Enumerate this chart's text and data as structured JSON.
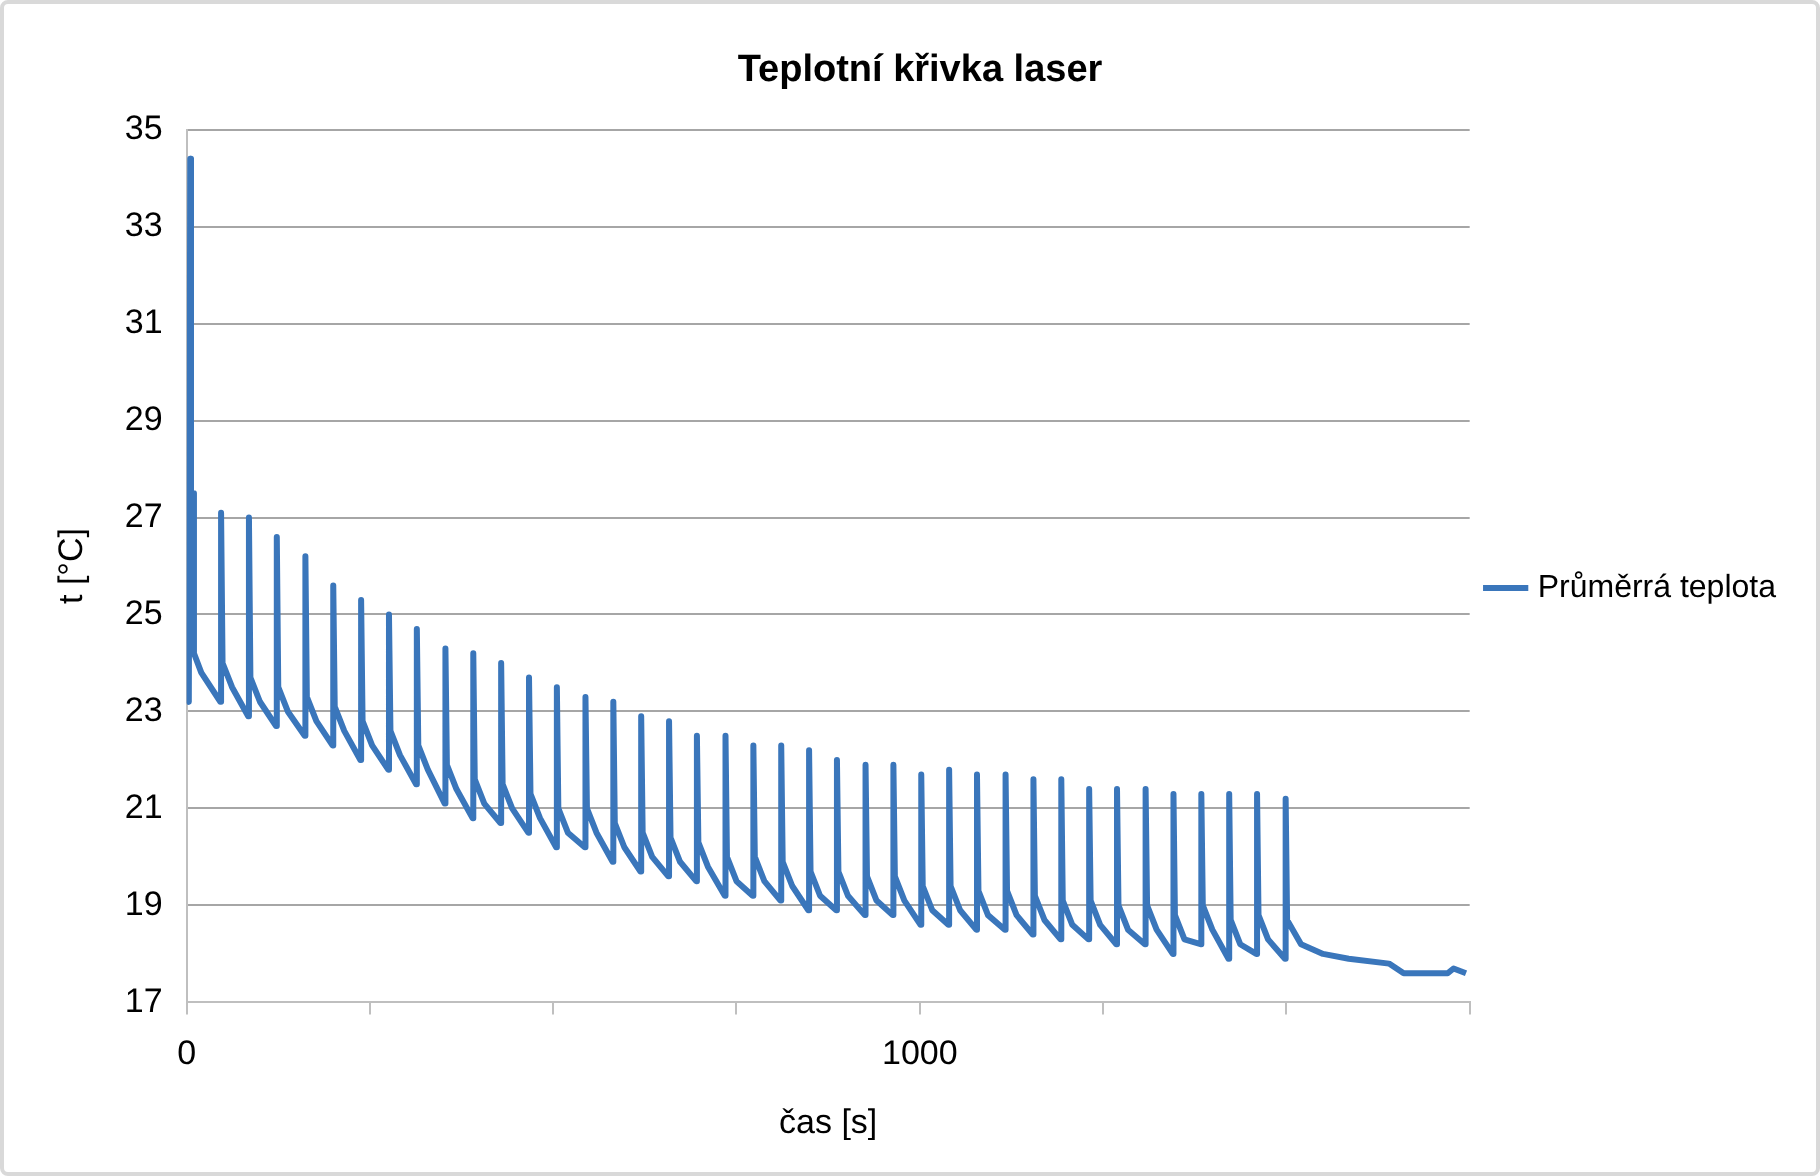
{
  "chart_data": {
    "type": "line",
    "title": "Teplotní křivka laser",
    "xlabel": "čas [s]",
    "ylabel": "t [°C]",
    "x": [
      0,
      3,
      5,
      6,
      8,
      10,
      20,
      46,
      47,
      49,
      62,
      84,
      85,
      87,
      100,
      122,
      123,
      125,
      138,
      161,
      162,
      164,
      177,
      199,
      200,
      202,
      215,
      237,
      238,
      240,
      253,
      275,
      276,
      278,
      291,
      313,
      314,
      316,
      329,
      352,
      353,
      355,
      368,
      390,
      391,
      393,
      406,
      428,
      429,
      431,
      444,
      466,
      467,
      469,
      482,
      504,
      505,
      507,
      520,
      543,
      544,
      546,
      559,
      581,
      582,
      584,
      597,
      619,
      620,
      622,
      635,
      657,
      658,
      660,
      673,
      695,
      696,
      698,
      711,
      734,
      735,
      737,
      750,
      772,
      773,
      775,
      788,
      810,
      811,
      813,
      826,
      848,
      849,
      851,
      864,
      886,
      887,
      889,
      902,
      925,
      926,
      928,
      941,
      963,
      964,
      966,
      979,
      1001,
      1002,
      1004,
      1017,
      1039,
      1040,
      1042,
      1055,
      1077,
      1078,
      1080,
      1093,
      1116,
      1117,
      1119,
      1132,
      1154,
      1155,
      1157,
      1170,
      1192,
      1193,
      1195,
      1208,
      1230,
      1231,
      1233,
      1246,
      1268,
      1269,
      1271,
      1284,
      1307,
      1308,
      1310,
      1323,
      1345,
      1346,
      1348,
      1361,
      1383,
      1384,
      1386,
      1399,
      1421,
      1422,
      1424,
      1437,
      1459,
      1460,
      1462,
      1475,
      1498,
      1499,
      1501,
      1520,
      1550,
      1585,
      1640,
      1660,
      1720,
      1728,
      1745
    ],
    "series": [
      {
        "name": "Průměrrá teplota",
        "color": "#3a76bb",
        "values": [
          23.3,
          23.2,
          34.4,
          24.5,
          27.5,
          24.2,
          23.8,
          23.2,
          27.1,
          24.0,
          23.5,
          22.9,
          27.0,
          23.7,
          23.2,
          22.7,
          26.6,
          23.5,
          23.0,
          22.5,
          26.2,
          23.3,
          22.8,
          22.3,
          25.6,
          23.1,
          22.6,
          22.0,
          25.3,
          22.8,
          22.3,
          21.8,
          25.0,
          22.6,
          22.1,
          21.5,
          24.7,
          22.3,
          21.8,
          21.1,
          24.3,
          21.9,
          21.4,
          20.8,
          24.2,
          21.6,
          21.1,
          20.7,
          24.0,
          21.5,
          21.0,
          20.5,
          23.7,
          21.3,
          20.8,
          20.2,
          23.5,
          21.0,
          20.5,
          20.2,
          23.3,
          21.0,
          20.5,
          19.9,
          23.2,
          20.7,
          20.2,
          19.7,
          22.9,
          20.5,
          20.0,
          19.6,
          22.8,
          20.4,
          19.9,
          19.5,
          22.5,
          20.3,
          19.8,
          19.2,
          22.5,
          20.0,
          19.5,
          19.2,
          22.3,
          20.0,
          19.5,
          19.1,
          22.3,
          19.9,
          19.4,
          18.9,
          22.2,
          19.7,
          19.2,
          18.9,
          22.0,
          19.7,
          19.2,
          18.8,
          21.9,
          19.6,
          19.1,
          18.8,
          21.9,
          19.6,
          19.1,
          18.6,
          21.7,
          19.4,
          18.9,
          18.6,
          21.8,
          19.4,
          18.9,
          18.5,
          21.7,
          19.3,
          18.8,
          18.5,
          21.7,
          19.3,
          18.8,
          18.4,
          21.6,
          19.2,
          18.7,
          18.3,
          21.6,
          19.1,
          18.6,
          18.3,
          21.4,
          19.1,
          18.6,
          18.2,
          21.4,
          19.0,
          18.5,
          18.2,
          21.4,
          19.0,
          18.5,
          18.0,
          21.3,
          18.8,
          18.3,
          18.2,
          21.3,
          19.0,
          18.5,
          17.9,
          21.3,
          18.7,
          18.2,
          18.0,
          21.3,
          18.8,
          18.3,
          17.9,
          21.2,
          18.7,
          18.2,
          18.0,
          17.9,
          17.8,
          17.6,
          17.6,
          17.7,
          17.6
        ]
      }
    ],
    "xlim": [
      0,
      1750
    ],
    "xticks": [
      0,
      {
        "value": 250,
        "label": null
      },
      {
        "value": 500,
        "label": null
      },
      {
        "value": 750,
        "label": null
      },
      1000,
      {
        "value": 1250,
        "label": null
      },
      {
        "value": 1500,
        "label": null
      },
      {
        "value": 1750,
        "label": null
      }
    ],
    "ylim": [
      17,
      35
    ],
    "yticks": [
      17,
      19,
      21,
      23,
      25,
      27,
      29,
      31,
      33,
      35
    ],
    "grid": "y",
    "legend": "right",
    "marker": "none",
    "line_style": "solid"
  }
}
